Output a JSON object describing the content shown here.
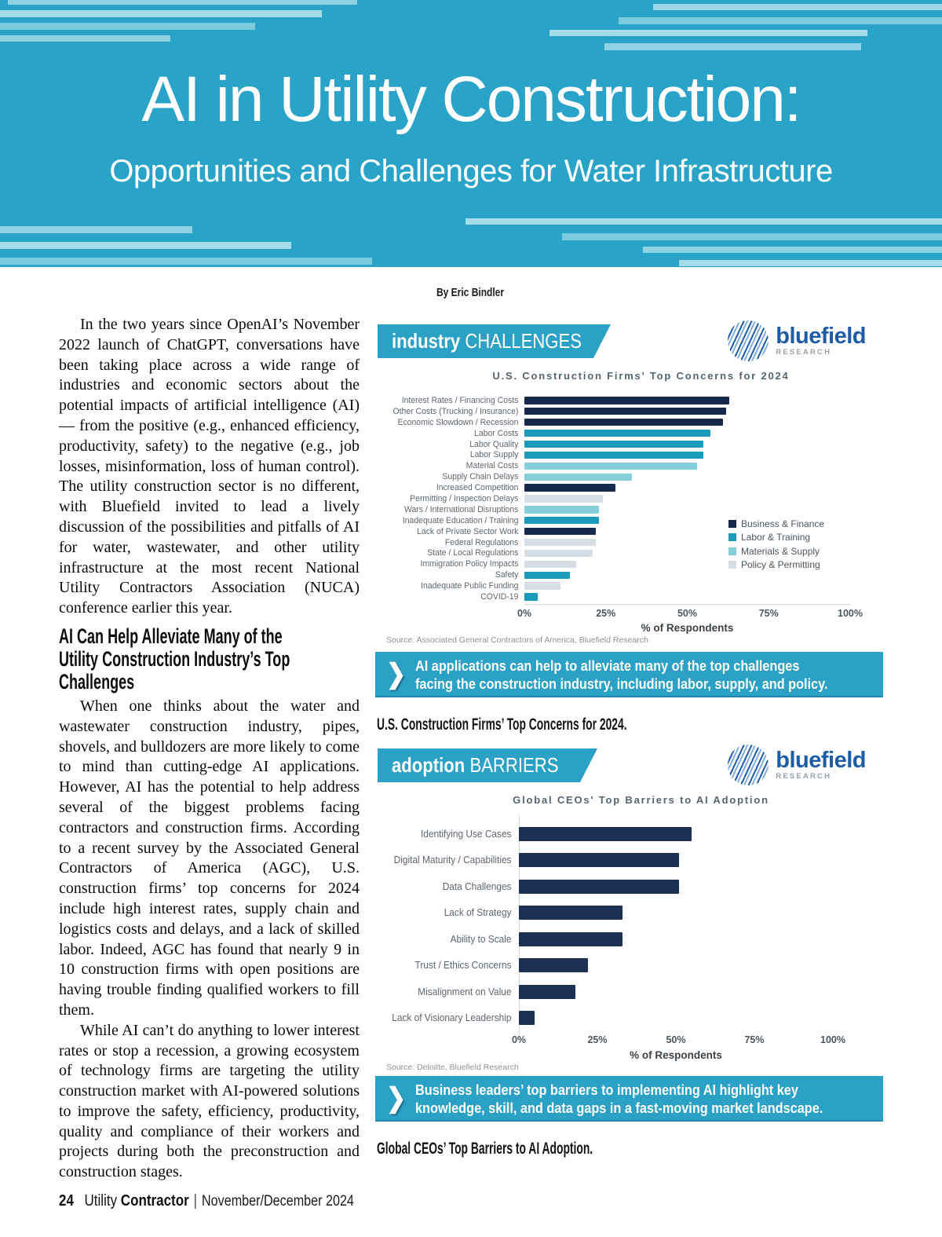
{
  "header": {
    "title": "AI in Utility Construction:",
    "subtitle": "Opportunities and Challenges for Water Infrastructure"
  },
  "byline": "By Eric Bindler",
  "article": {
    "heading_lines": [
      "AI Can Help Alleviate Many of the",
      "Utility Construction Industry’s Top",
      "Challenges"
    ],
    "paragraphs": [
      "In the two years since OpenAI’s November 2022 launch of ChatGPT, conversations have been taking place across a wide range of industries and economic sectors about the potential impacts of artificial intelligence (AI) — from the positive (e.g., enhanced efficiency, productivity, safety) to the negative (e.g., job losses, misinformation, loss of human control). The utility construction sector is no different, with Bluefield invited to lead a lively discussion of the possibilities and pitfalls of AI for water, wastewater, and other utility infrastructure at the most recent National Utility Contractors Association (NUCA) conference earlier this year.",
      "When one thinks about the water and wastewater construction industry, pipes, shovels, and bulldozers are more likely to come to mind than cutting-edge AI applications. However, AI has the potential to help address several of the biggest problems facing contractors and construction firms. According to a recent survey by the Associated General Contractors of America (AGC), U.S. construction firms’ top concerns for 2024 include high interest rates, supply chain and logistics costs and delays, and a lack of skilled labor. Indeed, AGC has found that nearly 9 in 10 construction firms with open positions are having trouble finding qualified workers to fill them.",
      "While AI can’t do anything to lower interest rates or stop a recession, a growing ecosystem of technology firms are targeting the utility construction market with AI-powered solutions to improve the safety, efficiency, productivity, quality and compliance of their workers and projects during both the preconstruction and construction stages."
    ]
  },
  "footer": {
    "page_number": "24",
    "magazine_name_regular": "Utility",
    "magazine_name_bold": "Contractor",
    "separator": "|",
    "issue": "November/December 2024"
  },
  "icons": {
    "callout_chevron": "❯"
  },
  "figures": [
    {
      "banner_word1": "industry",
      "banner_word2": "CHALLENGES",
      "logo_brand": "bluefield",
      "logo_sub": "RESEARCH",
      "callout_lines": [
        "AI applications can help to alleviate many of the top challenges",
        "facing the construction industry, including labor, supply, and policy."
      ],
      "caption": "U.S. Construction Firms’ Top Concerns for 2024."
    },
    {
      "banner_word1": "adoption",
      "banner_word2": "BARRIERS",
      "logo_brand": "bluefield",
      "logo_sub": "RESEARCH",
      "callout_lines": [
        "Business leaders’ top barriers to implementing AI highlight key",
        "knowledge, skill, and data gaps in a fast-moving market landscape."
      ],
      "caption": "Global CEOs’ Top Barriers to AI Adoption."
    }
  ],
  "chart_data": [
    {
      "type": "bar",
      "orientation": "horizontal",
      "title": "U.S. Construction Firms' Top Concerns for 2024",
      "xlabel": "% of Respondents",
      "x_ticks": [
        "0%",
        "25%",
        "50%",
        "75%",
        "100%"
      ],
      "xlim": [
        0,
        100
      ],
      "grid": false,
      "legend_position": "inside-right",
      "series_colors": {
        "business": "#16294d",
        "labor": "#1b9abc",
        "materials": "#85cfdb",
        "policy": "#d6dde5"
      },
      "legend": [
        {
          "label": "Business & Finance",
          "series": "business"
        },
        {
          "label": "Labor & Training",
          "series": "labor"
        },
        {
          "label": "Materials & Supply",
          "series": "materials"
        },
        {
          "label": "Policy & Permitting",
          "series": "policy"
        }
      ],
      "rows": [
        {
          "label": "Interest Rates / Financing Costs",
          "value": 63,
          "series": "business"
        },
        {
          "label": "Other Costs (Trucking / Insurance)",
          "value": 62,
          "series": "business"
        },
        {
          "label": "Economic Slowdown / Recession",
          "value": 61,
          "series": "business"
        },
        {
          "label": "Labor Costs",
          "value": 57,
          "series": "labor"
        },
        {
          "label": "Labor Quality",
          "value": 55,
          "series": "labor"
        },
        {
          "label": "Labor Supply",
          "value": 55,
          "series": "labor"
        },
        {
          "label": "Material Costs",
          "value": 53,
          "series": "materials"
        },
        {
          "label": "Supply Chain Delays",
          "value": 33,
          "series": "materials"
        },
        {
          "label": "Increased Competition",
          "value": 28,
          "series": "business"
        },
        {
          "label": "Permitting / Inspection Delays",
          "value": 24,
          "series": "policy"
        },
        {
          "label": "Wars / International Disruptions",
          "value": 23,
          "series": "materials"
        },
        {
          "label": "Inadequate Education / Training",
          "value": 23,
          "series": "labor"
        },
        {
          "label": "Lack of Private Sector Work",
          "value": 22,
          "series": "business"
        },
        {
          "label": "Federal Regulations",
          "value": 22,
          "series": "policy"
        },
        {
          "label": "State / Local Regulations",
          "value": 21,
          "series": "policy"
        },
        {
          "label": "Immigration Policy Impacts",
          "value": 16,
          "series": "policy"
        },
        {
          "label": "Safety",
          "value": 14,
          "series": "labor"
        },
        {
          "label": "Inadequate Public Funding",
          "value": 11,
          "series": "policy"
        },
        {
          "label": "COVID-19",
          "value": 4,
          "series": "labor"
        }
      ],
      "source": "Source: Associated General Contractors of America, Bluefield Research"
    },
    {
      "type": "bar",
      "orientation": "horizontal",
      "title": "Global CEOs' Top Barriers to AI Adoption",
      "xlabel": "% of Respondents",
      "x_ticks": [
        "0%",
        "25%",
        "50%",
        "75%",
        "100%"
      ],
      "xlim": [
        0,
        100
      ],
      "grid": false,
      "series_colors": {
        "default": "#1c2f55"
      },
      "rows": [
        {
          "label": "Identifying Use Cases",
          "value": 55,
          "series": "default"
        },
        {
          "label": "Digital Maturity / Capabilities",
          "value": 51,
          "series": "default"
        },
        {
          "label": "Data Challenges",
          "value": 51,
          "series": "default"
        },
        {
          "label": "Lack of Strategy",
          "value": 33,
          "series": "default"
        },
        {
          "label": "Ability to Scale",
          "value": 33,
          "series": "default"
        },
        {
          "label": "Trust / Ethics Concerns",
          "value": 22,
          "series": "default"
        },
        {
          "label": "Misalignment on Value",
          "value": 18,
          "series": "default"
        },
        {
          "label": "Lack of Visionary Leadership",
          "value": 5,
          "series": "default"
        }
      ],
      "source": "Source: Deloitte, Bluefield Research"
    }
  ]
}
